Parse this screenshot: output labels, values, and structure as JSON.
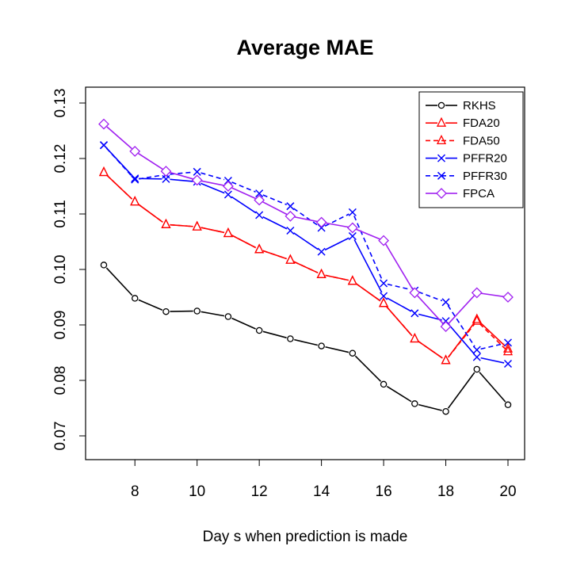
{
  "chart_data": {
    "type": "line",
    "title": "Average MAE",
    "xlabel": "Day s when prediction is made",
    "ylabel": "",
    "x": [
      7,
      8,
      9,
      10,
      11,
      12,
      13,
      14,
      15,
      16,
      17,
      18,
      19,
      20
    ],
    "xlim": [
      7,
      20
    ],
    "ylim": [
      0.065,
      0.131
    ],
    "x_ticks": [
      8,
      10,
      12,
      14,
      16,
      18,
      20
    ],
    "x_tick_labels": [
      "8",
      "10",
      "12",
      "14",
      "16",
      "18",
      "20"
    ],
    "y_ticks": [
      0.07,
      0.08,
      0.09,
      0.1,
      0.11,
      0.12,
      0.13
    ],
    "y_tick_labels": [
      "0.07",
      "0.08",
      "0.09",
      "0.10",
      "0.11",
      "0.12",
      "0.13"
    ],
    "grid": false,
    "legend_position": "top-right",
    "series": [
      {
        "name": "RKHS",
        "color": "#000000",
        "marker": "circle",
        "dash": "solid",
        "values": [
          0.1008,
          0.0948,
          0.0924,
          0.0925,
          0.0915,
          0.089,
          0.0875,
          0.0862,
          0.0849,
          0.0793,
          0.0758,
          0.0744,
          0.082,
          0.0756
        ]
      },
      {
        "name": "FDA20",
        "color": "#ff0000",
        "marker": "triangle",
        "dash": "solid",
        "values": [
          0.1175,
          0.1122,
          0.1081,
          0.1077,
          0.1065,
          0.1036,
          0.1017,
          0.0991,
          0.0979,
          0.0939,
          0.0875,
          0.0836,
          0.091,
          0.0857
        ]
      },
      {
        "name": "FDA50",
        "color": "#ff0000",
        "marker": "triangle",
        "dash": "dashed",
        "values": [
          0.1175,
          0.1122,
          0.1081,
          0.1077,
          0.1065,
          0.1036,
          0.1017,
          0.0991,
          0.0979,
          0.0939,
          0.0875,
          0.0836,
          0.0907,
          0.0852
        ]
      },
      {
        "name": "PFFR20",
        "color": "#0000ff",
        "marker": "cross",
        "dash": "solid",
        "values": [
          0.1224,
          0.1164,
          0.1163,
          0.1158,
          0.1135,
          0.1098,
          0.107,
          0.1032,
          0.106,
          0.0952,
          0.0921,
          0.0907,
          0.0842,
          0.083
        ]
      },
      {
        "name": "PFFR30",
        "color": "#0000ff",
        "marker": "cross",
        "dash": "dashed",
        "values": [
          0.1224,
          0.1162,
          0.1171,
          0.1176,
          0.116,
          0.1137,
          0.1114,
          0.1075,
          0.1103,
          0.0975,
          0.0962,
          0.0941,
          0.0855,
          0.0868
        ]
      },
      {
        "name": "FPCA",
        "color": "#a020f0",
        "marker": "diamond",
        "dash": "solid",
        "values": [
          0.1262,
          0.1213,
          0.1177,
          0.1161,
          0.115,
          0.1125,
          0.1096,
          0.1085,
          0.1075,
          0.1052,
          0.0958,
          0.0897,
          0.0958,
          0.095
        ]
      }
    ]
  }
}
